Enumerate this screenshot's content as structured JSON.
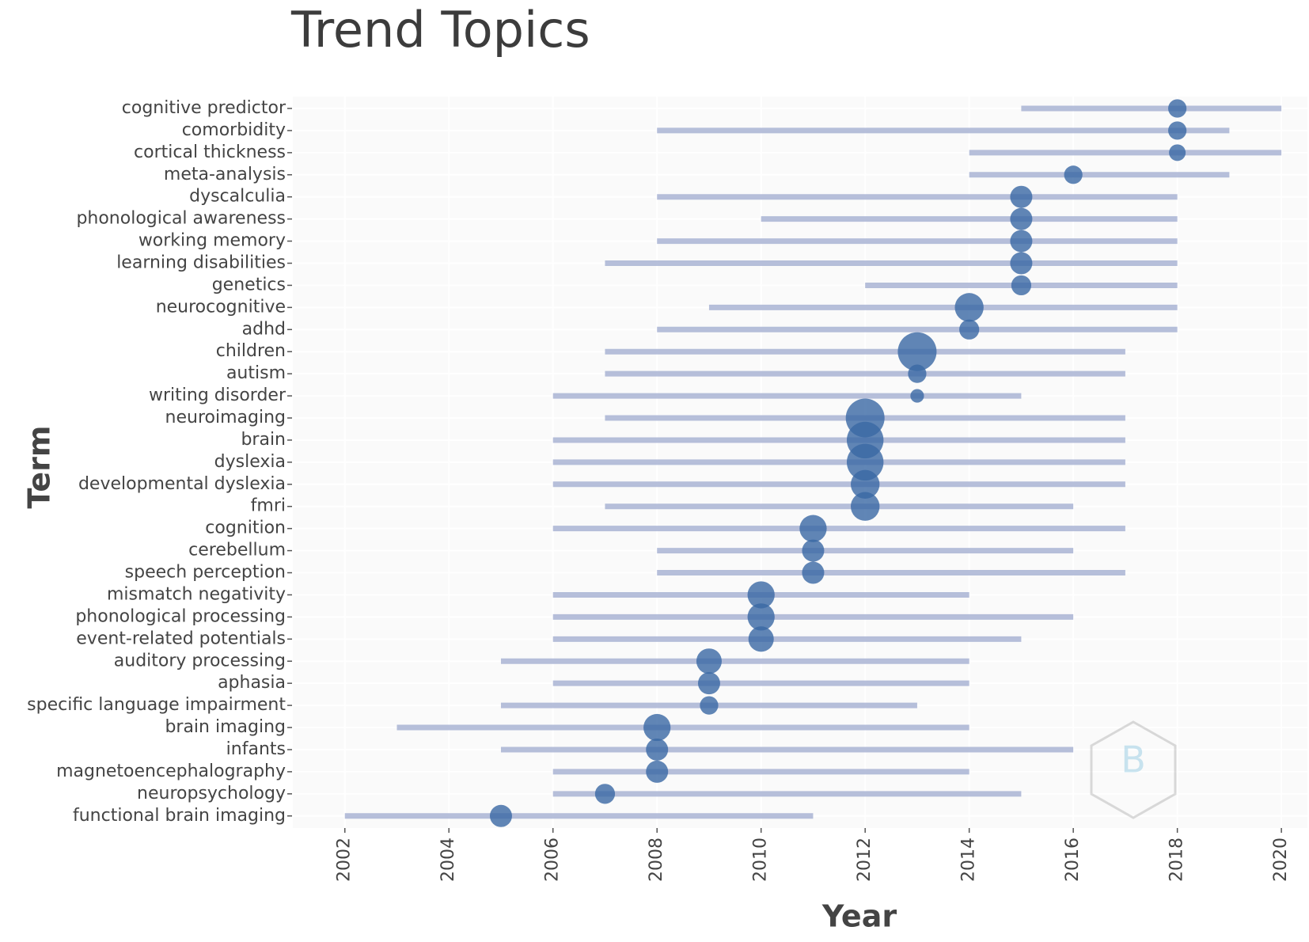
{
  "chart_data": {
    "type": "trend",
    "title": "Trend Topics",
    "xlabel": "Year",
    "ylabel": "Term",
    "categories": [
      "cognitive predictor",
      "comorbidity",
      "cortical thickness",
      "meta-analysis",
      "dyscalculia",
      "phonological awareness",
      "working memory",
      "learning disabilities",
      "genetics",
      "neurocognitive",
      "adhd",
      "children",
      "autism",
      "writing disorder",
      "neuroimaging",
      "brain",
      "dyslexia",
      "developmental dyslexia",
      "fmri",
      "cognition",
      "cerebellum",
      "speech perception",
      "mismatch negativity",
      "phonological processing",
      "event-related potentials",
      "auditory processing",
      "aphasia",
      "specific language impairment",
      "brain imaging",
      "infants",
      "magnetoencephalography",
      "neuropsychology",
      "functional brain imaging"
    ],
    "start": [
      2015,
      2008,
      2014,
      2014,
      2008,
      2010,
      2008,
      2007,
      2012,
      2009,
      2008,
      2007,
      2007,
      2006,
      2007,
      2006,
      2006,
      2006,
      2007,
      2006,
      2008,
      2008,
      2006,
      2006,
      2006,
      2005,
      2006,
      2005,
      2003,
      2005,
      2006,
      2006,
      2002
    ],
    "end": [
      2020,
      2019,
      2020,
      2019,
      2018,
      2018,
      2018,
      2018,
      2018,
      2018,
      2018,
      2017,
      2017,
      2015,
      2017,
      2017,
      2017,
      2017,
      2016,
      2017,
      2016,
      2017,
      2014,
      2016,
      2015,
      2014,
      2014,
      2013,
      2014,
      2016,
      2014,
      2015,
      2011
    ],
    "median": [
      2018,
      2018,
      2018,
      2016,
      2015,
      2015,
      2015,
      2015,
      2015,
      2014,
      2014,
      2013,
      2013,
      2013,
      2012,
      2012,
      2012,
      2012,
      2012,
      2011,
      2011,
      2011,
      2010,
      2010,
      2010,
      2009,
      2009,
      2009,
      2008,
      2008,
      2008,
      2007,
      2005
    ],
    "freq": [
      11,
      11,
      9,
      11,
      16,
      16,
      16,
      16,
      13,
      27,
      13,
      49,
      11,
      6,
      49,
      44,
      44,
      27,
      27,
      24,
      16,
      16,
      24,
      24,
      21,
      21,
      16,
      11,
      24,
      16,
      16,
      13,
      16
    ],
    "range_color": "#aab4d4",
    "dot_color": "#3a68a4",
    "xlim": [
      2001,
      2020.5
    ],
    "xticks": [
      2002,
      2004,
      2006,
      2008,
      2010,
      2012,
      2014,
      2016,
      2018,
      2020
    ],
    "grid": true
  }
}
